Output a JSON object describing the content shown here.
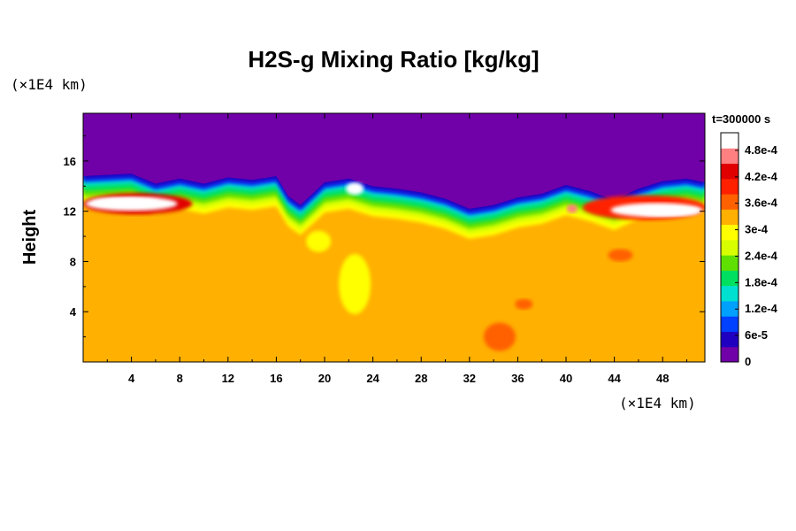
{
  "chart_data": {
    "type": "heatmap",
    "title": "H2S-g Mixing Ratio [kg/kg]",
    "ylabel": "Height",
    "xlabel": "",
    "x_unit": "(×1E4 km)",
    "y_unit": "(×1E4 km)",
    "time_label": "t=300000 s",
    "xlim": [
      0,
      51.5
    ],
    "ylim": [
      0,
      19.8
    ],
    "x_ticks": [
      "4",
      "8",
      "12",
      "16",
      "20",
      "24",
      "28",
      "32",
      "36",
      "40",
      "44",
      "48"
    ],
    "x_tick_values": [
      4,
      8,
      12,
      16,
      20,
      24,
      28,
      32,
      36,
      40,
      44,
      48
    ],
    "y_ticks": [
      "4",
      "8",
      "12",
      "16"
    ],
    "y_tick_values": [
      4,
      8,
      12,
      16
    ],
    "colorbar": {
      "min": 0,
      "max": 0.00052,
      "tick_labels": [
        "0",
        "6e-5",
        "1.2e-4",
        "1.8e-4",
        "2.4e-4",
        "3e-4",
        "3.6e-4",
        "4.2e-4",
        "4.8e-4"
      ],
      "tick_values": [
        0,
        6e-05,
        0.00012,
        0.00018,
        0.00024,
        0.0003,
        0.00036,
        0.00042,
        0.00048
      ],
      "colors": [
        "#7000a8",
        "#2000c0",
        "#0040ff",
        "#00a0ff",
        "#00e0d0",
        "#00e060",
        "#60e000",
        "#d8ff00",
        "#ffff00",
        "#ffb000",
        "#ff6000",
        "#ff2000",
        "#e00000",
        "#ff8080",
        "#ffffff"
      ]
    },
    "regions": {
      "upper_value": 0,
      "lower_value": 0.00033,
      "boundary_height": [
        14.8,
        14.9,
        15.0,
        14.2,
        14.6,
        14.2,
        14.7,
        14.5,
        14.8,
        13.2,
        12.5,
        13.4,
        14.3,
        14.6,
        14.0,
        13.8,
        13.5,
        13.0,
        12.2,
        12.5,
        13.1,
        13.4,
        14.1,
        13.6,
        12.9,
        13.8,
        14.4,
        14.6,
        14.3
      ],
      "boundary_x": [
        0,
        2,
        4,
        6,
        8,
        10,
        12,
        14,
        16,
        17,
        18,
        19,
        20,
        22,
        24,
        26,
        28,
        30,
        32,
        34,
        36,
        38,
        40,
        42,
        44,
        46,
        48,
        50,
        51.5
      ]
    }
  }
}
